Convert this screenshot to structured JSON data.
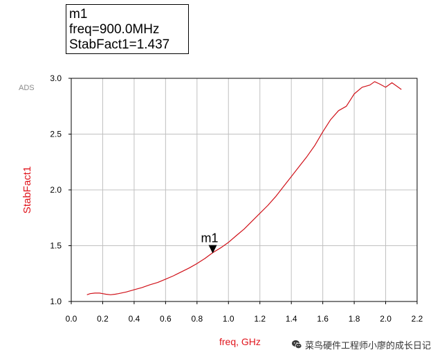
{
  "marker_box": {
    "line1": "m1",
    "line2": "freq=900.0MHz",
    "line3": "StabFact1=1.437"
  },
  "watermark": {
    "text": "菜鸟硬件工程师小廖的成长日记",
    "icon": "wechat-icon"
  },
  "colors": {
    "trace": "#d01018",
    "axis_label": "#e0141c",
    "grid": "#c0c0c0",
    "frame": "#000000",
    "ads_tag": "#8a8a8a"
  },
  "chart_data": {
    "type": "line",
    "title": "",
    "tag": "ADS",
    "xlabel": "freq, GHz",
    "ylabel": "StabFact1",
    "xlim": [
      0.0,
      2.2
    ],
    "ylim": [
      1.0,
      3.0
    ],
    "grid": true,
    "x_ticks": [
      0.0,
      0.2,
      0.4,
      0.6,
      0.8,
      1.0,
      1.2,
      1.4,
      1.6,
      1.8,
      2.0,
      2.2
    ],
    "x_tick_labels": [
      "0.0",
      "0.2",
      "0.4",
      "0.6",
      "0.8",
      "1.0",
      "1.2",
      "1.4",
      "1.6",
      "1.8",
      "2.0",
      "2.2"
    ],
    "y_ticks": [
      1.0,
      1.5,
      2.0,
      2.5,
      3.0
    ],
    "y_tick_labels": [
      "1.0",
      "1.5",
      "2.0",
      "2.5",
      "3.0"
    ],
    "series": [
      {
        "x": [
          0.1,
          0.12,
          0.15,
          0.18,
          0.2,
          0.22,
          0.25,
          0.28,
          0.3,
          0.35,
          0.4,
          0.45,
          0.5,
          0.55,
          0.6,
          0.65,
          0.7,
          0.75,
          0.8,
          0.85,
          0.9,
          0.95,
          1.0,
          1.05,
          1.1,
          1.15,
          1.2,
          1.25,
          1.3,
          1.35,
          1.4,
          1.45,
          1.5,
          1.55,
          1.6,
          1.65,
          1.7,
          1.75,
          1.8,
          1.85,
          1.9,
          1.93,
          1.96,
          2.0,
          2.04,
          2.07,
          2.1
        ],
        "values": [
          1.06,
          1.07,
          1.075,
          1.075,
          1.07,
          1.065,
          1.06,
          1.065,
          1.07,
          1.085,
          1.105,
          1.125,
          1.15,
          1.17,
          1.2,
          1.23,
          1.265,
          1.3,
          1.34,
          1.385,
          1.437,
          1.48,
          1.53,
          1.59,
          1.65,
          1.72,
          1.79,
          1.86,
          1.94,
          2.03,
          2.12,
          2.21,
          2.3,
          2.4,
          2.52,
          2.63,
          2.71,
          2.75,
          2.86,
          2.92,
          2.94,
          2.97,
          2.95,
          2.92,
          2.96,
          2.93,
          2.9
        ]
      }
    ],
    "markers": [
      {
        "label": "m1",
        "x": 0.9,
        "y": 1.437
      }
    ]
  }
}
